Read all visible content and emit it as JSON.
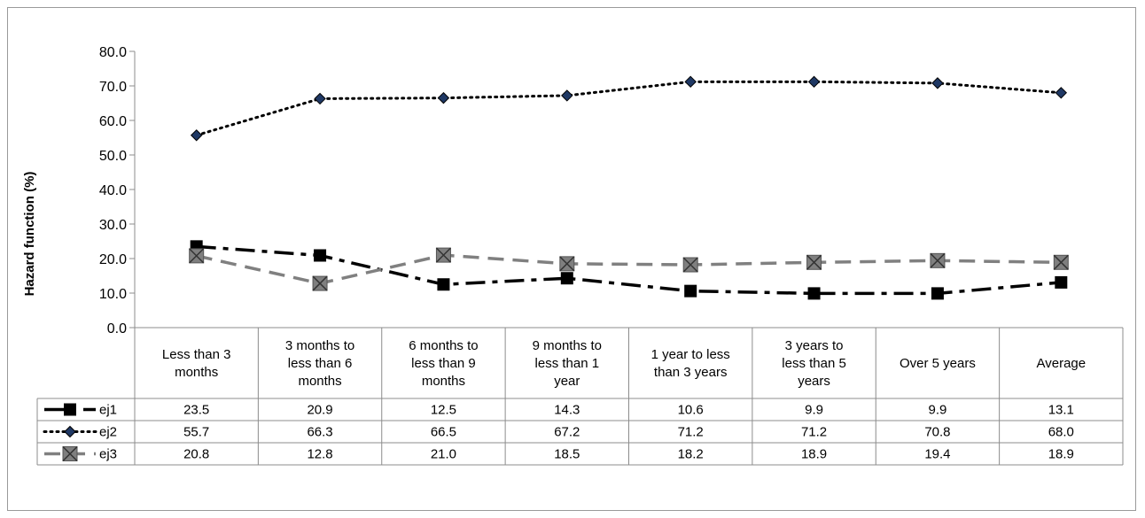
{
  "chart_data": {
    "type": "line",
    "ylabel": "Hazard function (%)",
    "ylim": [
      0,
      80
    ],
    "yticks": [
      "0.0",
      "10.0",
      "20.0",
      "30.0",
      "40.0",
      "50.0",
      "60.0",
      "70.0",
      "80.0"
    ],
    "categories": [
      [
        "Less than 3",
        "months"
      ],
      [
        "3 months to",
        "less than 6",
        "months"
      ],
      [
        "6 months to",
        "less than 9",
        "months"
      ],
      [
        "9 months to",
        "less than 1",
        "year"
      ],
      [
        "1 year to less",
        "than 3 years"
      ],
      [
        "3 years to",
        "less than 5",
        "years"
      ],
      [
        "Over 5 years"
      ],
      [
        "Average"
      ]
    ],
    "series": [
      {
        "name": "ej1",
        "values": [
          23.5,
          20.9,
          12.5,
          14.3,
          10.6,
          9.9,
          9.9,
          13.1
        ],
        "labels": [
          "23.5",
          "20.9",
          "12.5",
          "14.3",
          "10.6",
          "9.9",
          "9.9",
          "13.1"
        ],
        "color": "#000000",
        "marker": "square",
        "dash": "22,8,6,8",
        "strokeWidth": 3.5
      },
      {
        "name": "ej2",
        "values": [
          55.7,
          66.3,
          66.5,
          67.2,
          71.2,
          71.2,
          70.8,
          68.0
        ],
        "labels": [
          "55.7",
          "66.3",
          "66.5",
          "67.2",
          "71.2",
          "71.2",
          "70.8",
          "68.0"
        ],
        "color": "#000000",
        "marker": "diamond",
        "markerFill": "#1f3864",
        "dash": "2,5",
        "strokeWidth": 3
      },
      {
        "name": "ej3",
        "values": [
          20.8,
          12.8,
          21.0,
          18.5,
          18.2,
          18.9,
          19.4,
          18.9
        ],
        "labels": [
          "20.8",
          "12.8",
          "21.0",
          "18.5",
          "18.2",
          "18.9",
          "19.4",
          "18.9"
        ],
        "color": "#808080",
        "marker": "x-square",
        "dash": "18,10",
        "strokeWidth": 3.5
      }
    ],
    "grid": false,
    "legend": "data-table"
  }
}
